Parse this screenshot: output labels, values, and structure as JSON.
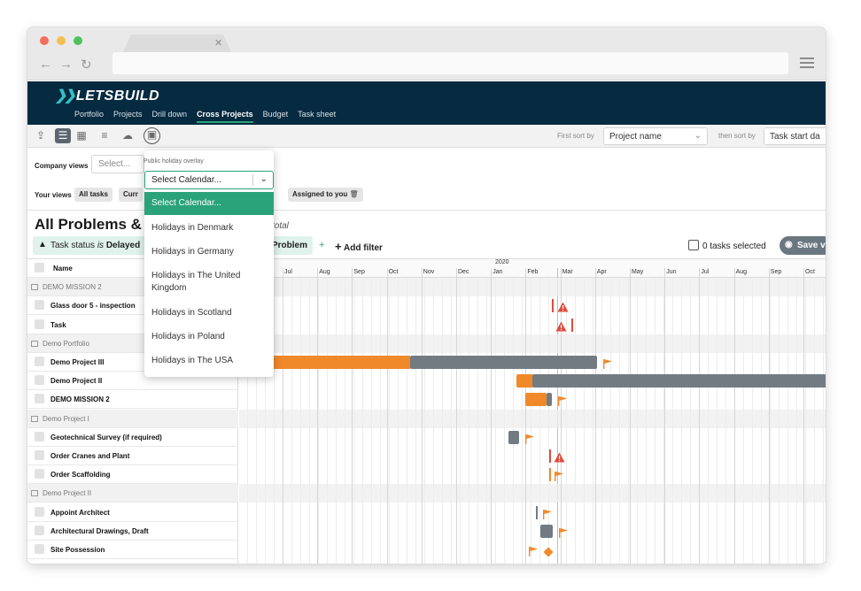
{
  "app": {
    "logo": "LETSBUILD"
  },
  "topnav": [
    "Portfolio",
    "Projects",
    "Drill down",
    "Cross Projects",
    "Budget",
    "Task sheet"
  ],
  "toolbar": {
    "first_sort_label": "First sort by",
    "first_sort_value": "Project name",
    "then_sort_label": "then sort by",
    "then_sort_value": "Task start da"
  },
  "views": {
    "company_label": "Company views",
    "company_placeholder": "Select...",
    "your_label": "Your views",
    "chips": [
      "All tasks",
      "Curr",
      "Assigned to you"
    ]
  },
  "page": {
    "title": "All Problems & D",
    "total_text": "total",
    "filter_prefix": "Task status",
    "filter_is": "is",
    "filter_value": "Delayed",
    "filter_chip2": "Problem",
    "add_filter": "Add filter",
    "tasks_selected": "0 tasks selected",
    "save_label": "Save v"
  },
  "dropdown": {
    "label": "Public holiday overlay",
    "value": "Select Calendar...",
    "options": [
      "Select Calendar...",
      "Holidays in Denmark",
      "Holidays in Germany",
      "Holidays in The United Kingdom",
      "Holidays in Scotland",
      "Holidays in Poland",
      "Holidays in The USA"
    ]
  },
  "table": {
    "name_header": "Name",
    "rows": [
      {
        "type": "group",
        "name": "DEMO MISSION 2"
      },
      {
        "type": "task",
        "name": "Glass door 5 - inspection"
      },
      {
        "type": "task",
        "name": "Task"
      },
      {
        "type": "group",
        "name": "Demo Portfolio"
      },
      {
        "type": "task",
        "name": "Demo Project III"
      },
      {
        "type": "task",
        "name": "Demo Project II"
      },
      {
        "type": "task",
        "name": "DEMO MISSION 2"
      },
      {
        "type": "group",
        "name": "Demo Project I"
      },
      {
        "type": "task",
        "name": "Geotechnical Survey (if required)"
      },
      {
        "type": "task",
        "name": "Order Cranes and Plant"
      },
      {
        "type": "task",
        "name": "Order Scaffolding"
      },
      {
        "type": "group",
        "name": "Demo Project II"
      },
      {
        "type": "task",
        "name": "Appoint Architect"
      },
      {
        "type": "task",
        "name": "Architectural Drawings, Draft"
      },
      {
        "type": "task",
        "name": "Site Possession"
      }
    ]
  },
  "timeline": {
    "year": "2020",
    "months": [
      "Jul",
      "Aug",
      "Sep",
      "Oct",
      "Nov",
      "Dec",
      "Jan",
      "Feb",
      "Mar",
      "Apr",
      "May",
      "Jun",
      "Jul",
      "Aug",
      "Sep",
      "Oct"
    ]
  },
  "colors": {
    "accent": "#2aa37a",
    "header": "#062a40",
    "orange": "#f0892a",
    "gray": "#737b82",
    "warn": "#e04b3c"
  }
}
